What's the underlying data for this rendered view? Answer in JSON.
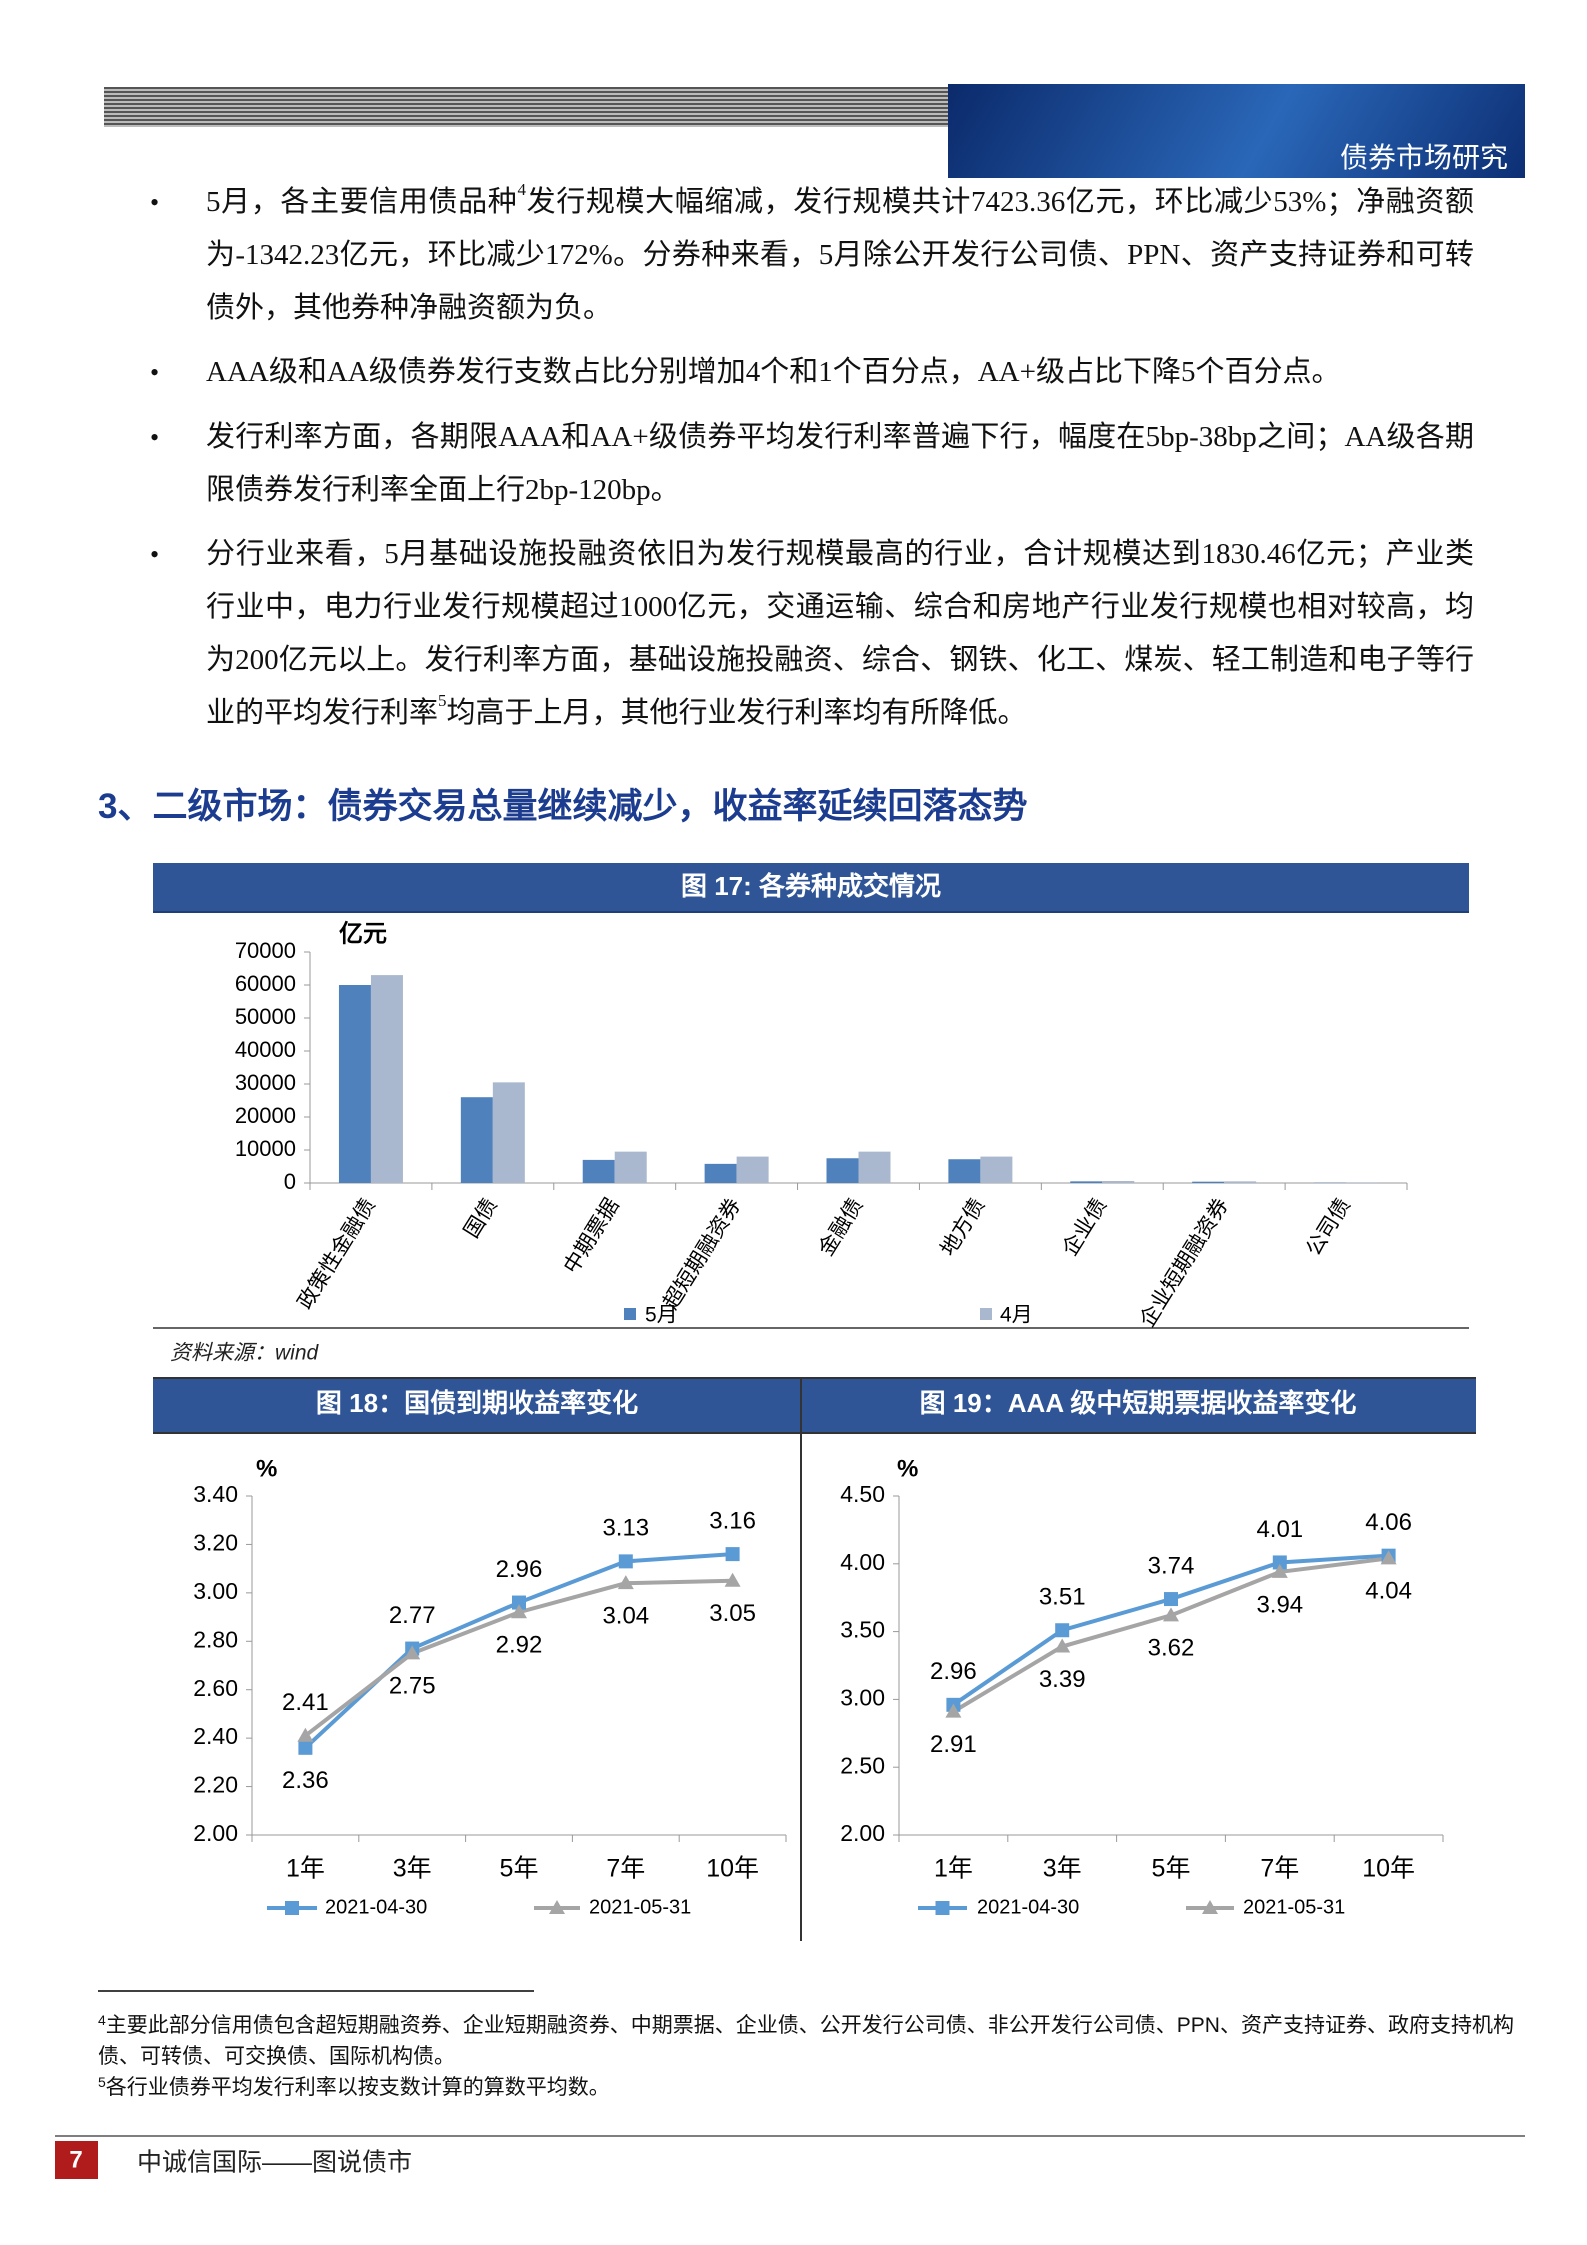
{
  "header": {
    "title": "债券市场研究"
  },
  "bullets": [
    [
      "5月，各主要信用债品种",
      "4",
      "发行规模大幅缩减，发行规模共计7423.36亿元，环比减少53%；净融资额为-1342.23亿元，环比减少172%。分券种来看，5月除公开发行公司债、PPN、资产支持证券和可转债外，其他券种净融资额为负。"
    ],
    [
      "AAA级和AA级债券发行支数占比分别增加4个和1个百分点，AA+级占比下降5个百分点。"
    ],
    [
      "发行利率方面，各期限AAA和AA+级债券平均发行利率普遍下行，幅度在5bp-38bp之间；AA级各期限债券发行利率全面上行2bp-120bp。"
    ],
    [
      "分行业来看，5月基础设施投融资依旧为发行规模最高的行业，合计规模达到1830.46亿元；产业类行业中，电力行业发行规模超过1000亿元，交通运输、综合和房地产行业发行规模也相对较高，均为200亿元以上。发行利率方面，基础设施投融资、综合、钢铁、化工、煤炭、轻工制造和电子等行业的平均发行利率",
      "5",
      "均高于上月，其他行业发行利率均有所降低。"
    ]
  ],
  "section_heading": "3、二级市场：债券交易总量继续减少，收益率延续回落态势",
  "chart_data": [
    {
      "type": "bar",
      "title": "图 17:  各券种成交情况",
      "y_label": "亿元",
      "categories": [
        "政策性金融债",
        "国债",
        "中期票据",
        "超短期融资券",
        "金融债",
        "地方债",
        "企业债",
        "企业短期融资券",
        "公司债"
      ],
      "series": [
        {
          "name": "5月",
          "color": "#4f81bd",
          "values": [
            60000,
            26000,
            7000,
            5800,
            7500,
            7200,
            500,
            400,
            100
          ]
        },
        {
          "name": "4月",
          "color": "#a9b8ce",
          "values": [
            63000,
            30500,
            9500,
            8000,
            9500,
            8000,
            600,
            500,
            200
          ]
        }
      ],
      "ylim": [
        0,
        70000
      ],
      "yticks": [
        0,
        10000,
        20000,
        30000,
        40000,
        50000,
        60000,
        70000
      ],
      "grid": false,
      "source": "资料来源：wind"
    },
    {
      "type": "line",
      "title": "图 18：国债到期收益率变化",
      "y_label": "%",
      "categories": [
        "1年",
        "3年",
        "5年",
        "7年",
        "10年"
      ],
      "series": [
        {
          "name": "2021-04-30",
          "color": "#5b9bd5",
          "values": [
            2.36,
            2.77,
            2.96,
            3.13,
            3.16
          ]
        },
        {
          "name": "2021-05-31",
          "color": "#a5a5a5",
          "values": [
            2.41,
            2.75,
            2.92,
            3.04,
            3.05
          ]
        }
      ],
      "ylim": [
        2,
        3.4
      ],
      "yticks": [
        {
          "value": 2,
          "label": "2.00"
        },
        {
          "value": 2.2,
          "label": "2.20"
        },
        {
          "value": 2.4,
          "label": "2.40"
        },
        {
          "value": 2.6,
          "label": "2.60"
        },
        {
          "value": 2.8,
          "label": "2.80"
        },
        {
          "value": 3,
          "label": "3.00"
        },
        {
          "value": 3.2,
          "label": "3.20"
        },
        {
          "value": 3.4,
          "label": "3.40"
        }
      ],
      "grid": false
    },
    {
      "type": "line",
      "title": "图 19：AAA 级中短期票据收益率变化",
      "y_label": "%",
      "categories": [
        "1年",
        "3年",
        "5年",
        "7年",
        "10年"
      ],
      "series": [
        {
          "name": "2021-04-30",
          "color": "#5b9bd5",
          "values": [
            2.96,
            3.51,
            3.74,
            4.01,
            4.06
          ]
        },
        {
          "name": "2021-05-31",
          "color": "#a5a5a5",
          "values": [
            2.91,
            3.39,
            3.62,
            3.94,
            4.04
          ]
        }
      ],
      "ylim": [
        2,
        4.5
      ],
      "yticks": [
        {
          "value": 2,
          "label": "2.00"
        },
        {
          "value": 2.5,
          "label": "2.50"
        },
        {
          "value": 3,
          "label": "3.00"
        },
        {
          "value": 3.5,
          "label": "3.50"
        },
        {
          "value": 4,
          "label": "4.00"
        },
        {
          "value": 4.5,
          "label": "4.50"
        }
      ],
      "grid": false
    }
  ],
  "footnotes": [
    [
      "4",
      "主要此部分信用债包含超短期融资券、企业短期融资券、中期票据、企业债、公开发行公司债、非公开发行公司债、PPN、资产支持证券、政府支持机构债、可转债、可交换债、国际机构债。"
    ],
    [
      "5",
      "各行业债券平均发行利率以按支数计算的算数平均数。"
    ]
  ],
  "footer": {
    "page": "7",
    "text": "中诚信国际——图说债市"
  }
}
